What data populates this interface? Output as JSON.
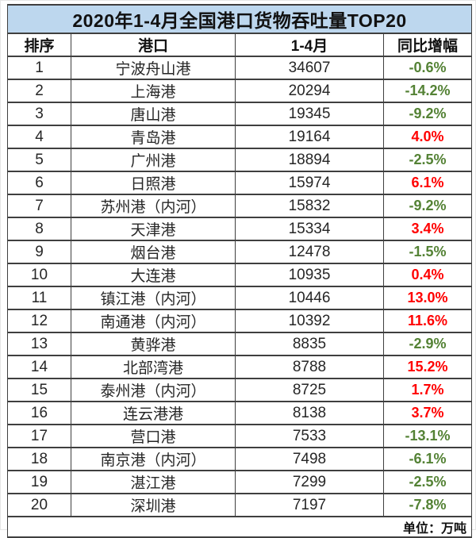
{
  "colors": {
    "title_bg": "#BDD7EE",
    "border": "#3f3f3f",
    "positive": "#ff0000",
    "negative": "#548235"
  },
  "chart_data": {
    "type": "table",
    "title": "2020年1-4月全国港口货物吞吐量TOP20",
    "columns": [
      "排序",
      "港口",
      "1-4月",
      "同比增幅"
    ],
    "unit_note": "单位：万吨",
    "rows": [
      {
        "rank": 1,
        "port": "宁波舟山港",
        "value": 34607,
        "growth": "-0.6%"
      },
      {
        "rank": 2,
        "port": "上海港",
        "value": 20294,
        "growth": "-14.2%"
      },
      {
        "rank": 3,
        "port": "唐山港",
        "value": 19345,
        "growth": "-9.2%"
      },
      {
        "rank": 4,
        "port": "青岛港",
        "value": 19164,
        "growth": "4.0%"
      },
      {
        "rank": 5,
        "port": "广州港",
        "value": 18894,
        "growth": "-2.5%"
      },
      {
        "rank": 6,
        "port": "日照港",
        "value": 15974,
        "growth": "6.1%"
      },
      {
        "rank": 7,
        "port": "苏州港（内河）",
        "value": 15832,
        "growth": "-9.2%"
      },
      {
        "rank": 8,
        "port": "天津港",
        "value": 15334,
        "growth": "3.4%"
      },
      {
        "rank": 9,
        "port": "烟台港",
        "value": 12478,
        "growth": "-1.5%"
      },
      {
        "rank": 10,
        "port": "大连港",
        "value": 10935,
        "growth": "0.4%"
      },
      {
        "rank": 11,
        "port": "镇江港（内河）",
        "value": 10446,
        "growth": "13.0%"
      },
      {
        "rank": 12,
        "port": "南通港（内河）",
        "value": 10392,
        "growth": "11.6%"
      },
      {
        "rank": 13,
        "port": "黄骅港",
        "value": 8835,
        "growth": "-2.9%"
      },
      {
        "rank": 14,
        "port": "北部湾港",
        "value": 8788,
        "growth": "15.2%"
      },
      {
        "rank": 15,
        "port": "泰州港（内河）",
        "value": 8725,
        "growth": "1.7%"
      },
      {
        "rank": 16,
        "port": "连云港港",
        "value": 8138,
        "growth": "3.7%"
      },
      {
        "rank": 17,
        "port": "营口港",
        "value": 7533,
        "growth": "-13.1%"
      },
      {
        "rank": 18,
        "port": "南京港（内河）",
        "value": 7498,
        "growth": "-6.1%"
      },
      {
        "rank": 19,
        "port": "湛江港",
        "value": 7299,
        "growth": "-2.5%"
      },
      {
        "rank": 20,
        "port": "深圳港",
        "value": 7197,
        "growth": "-7.8%"
      }
    ]
  }
}
